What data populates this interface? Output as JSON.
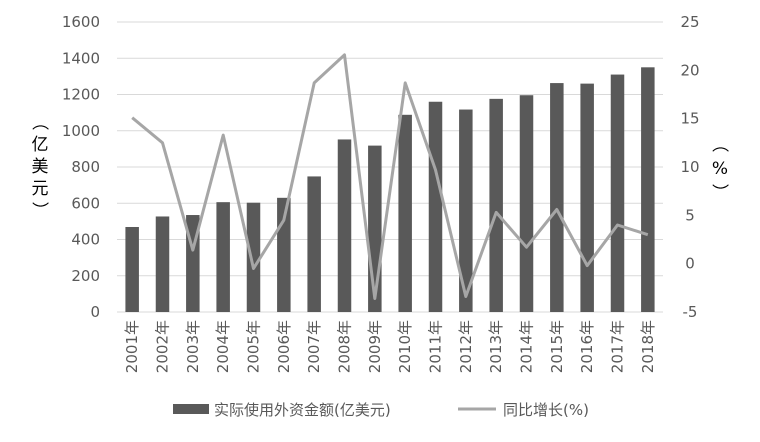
{
  "chart_data": {
    "type": "bar",
    "categories": [
      "2001年",
      "2002年",
      "2003年",
      "2004年",
      "2005年",
      "2006年",
      "2007年",
      "2008年",
      "2009年",
      "2010年",
      "2011年",
      "2012年",
      "2013年",
      "2014年",
      "2015年",
      "2016年",
      "2017年",
      "2018年"
    ],
    "series": [
      {
        "name": "实际使用外资金额(亿美元)",
        "type": "bar",
        "axis": "left",
        "color": "#595959",
        "values": [
          469,
          527,
          535,
          606,
          603,
          630,
          748,
          952,
          918,
          1088,
          1160,
          1117,
          1176,
          1196,
          1263,
          1260,
          1310,
          1350
        ]
      },
      {
        "name": "同比增长(%)",
        "type": "line",
        "axis": "right",
        "color": "#a6a6a6",
        "values": [
          15.1,
          12.5,
          1.4,
          13.3,
          -0.5,
          4.5,
          18.7,
          21.6,
          -3.6,
          18.7,
          9.7,
          -3.4,
          5.3,
          1.7,
          5.6,
          -0.2,
          4.0,
          3.0
        ]
      }
    ],
    "y_left": {
      "ylabel": [
        "（",
        "亿",
        "美",
        "元",
        "）"
      ],
      "ylim": [
        0,
        1600
      ],
      "ticks": [
        "1600",
        "1400",
        "1200",
        "1000",
        "800",
        "600",
        "400",
        "200",
        "0"
      ]
    },
    "y_right": {
      "ylabel": [
        "（",
        "%",
        "）"
      ],
      "ylim": [
        -5,
        25
      ],
      "ticks": [
        "25",
        "20",
        "15",
        "10",
        "5",
        "0",
        "-5"
      ]
    },
    "grid": true,
    "legend_position": "bottom"
  }
}
